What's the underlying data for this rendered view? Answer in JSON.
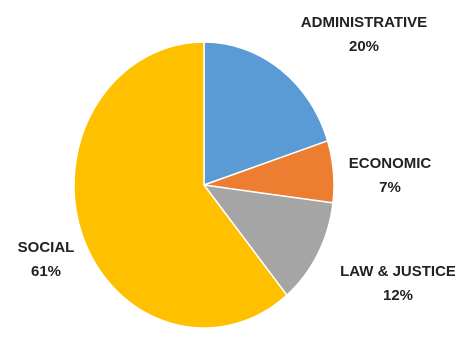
{
  "chart_data": {
    "type": "pie",
    "title": "",
    "start_angle_deg": 0,
    "direction": "clockwise",
    "slices": [
      {
        "label": "ADMINISTRATIVE",
        "value": 20,
        "value_label": "20%",
        "color": "#5B9BD5"
      },
      {
        "label": "ECONOMIC",
        "value": 7,
        "value_label": "7%",
        "color": "#ED7D31"
      },
      {
        "label": "LAW & JUSTICE",
        "value": 12,
        "value_label": "12%",
        "color": "#A5A5A5"
      },
      {
        "label": "SOCIAL",
        "value": 61,
        "value_label": "61%",
        "color": "#FFC000"
      }
    ]
  }
}
